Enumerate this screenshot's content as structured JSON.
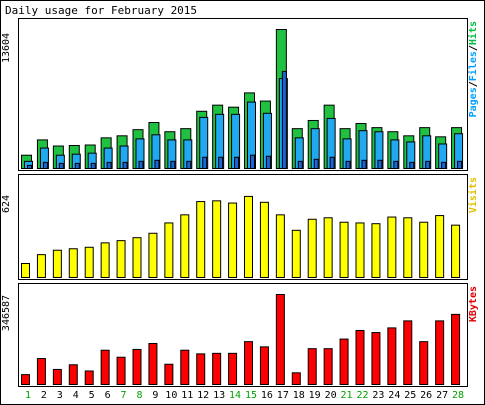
{
  "chart_data": {
    "type": "bar",
    "title": "Daily usage for February 2015",
    "categories": [
      "1",
      "2",
      "3",
      "4",
      "5",
      "6",
      "7",
      "8",
      "9",
      "10",
      "11",
      "12",
      "13",
      "14",
      "15",
      "16",
      "17",
      "18",
      "19",
      "20",
      "21",
      "22",
      "23",
      "24",
      "25",
      "26",
      "27",
      "28"
    ],
    "weekend_days": [
      "1",
      "7",
      "8",
      "14",
      "15",
      "21",
      "22",
      "28"
    ],
    "panels": [
      {
        "id": "hits",
        "ymax_label": "13604",
        "ylim": [
          0,
          13604
        ],
        "legend": [
          {
            "text": "Pages",
            "color": "#00a0ff"
          },
          {
            "text": "/",
            "color": "#000000"
          },
          {
            "text": "Files",
            "color": "#00a0ff"
          },
          {
            "text": "/",
            "color": "#000000"
          },
          {
            "text": "Hits",
            "color": "#00c040"
          }
        ],
        "series": [
          {
            "name": "Hits",
            "color": "#20c040",
            "values": [
              1300,
              2800,
              2200,
              2250,
              2300,
              3000,
              3200,
              3800,
              4500,
              3600,
              3900,
              5600,
              6200,
              6000,
              7400,
              6600,
              13604,
              3900,
              4700,
              6200,
              3900,
              4400,
              4000,
              3600,
              3200,
              4000,
              3100,
              4000
            ]
          },
          {
            "name": "Files",
            "color": "#20a8f0",
            "values": [
              700,
              2000,
              1300,
              1400,
              1500,
              2000,
              2200,
              2900,
              3300,
              2800,
              2800,
              5000,
              5300,
              5300,
              6500,
              5400,
              8800,
              3000,
              3900,
              4900,
              2900,
              3700,
              3600,
              2800,
              2600,
              3200,
              2400,
              3400
            ]
          },
          {
            "name": "Pages",
            "color": "#1a66d8",
            "values": [
              300,
              600,
              500,
              500,
              500,
              600,
              600,
              700,
              800,
              700,
              700,
              1100,
              1100,
              1100,
              1300,
              1200,
              9500,
              700,
              900,
              1100,
              700,
              800,
              800,
              700,
              600,
              700,
              600,
              700
            ]
          }
        ]
      },
      {
        "id": "visits",
        "ymax_label": "624",
        "ylim": [
          0,
          624
        ],
        "legend": [
          {
            "text": "Visits",
            "color": "#e0c000"
          }
        ],
        "series": [
          {
            "name": "Visits",
            "color": "#ffff00",
            "values": [
              95,
              155,
              185,
              195,
              205,
              235,
              250,
              270,
              300,
              370,
              425,
              515,
              520,
              505,
              550,
              510,
              425,
              320,
              395,
              405,
              375,
              370,
              365,
              410,
              405,
              375,
              420,
              355
            ]
          }
        ]
      },
      {
        "id": "kbytes",
        "ymax_label": "346587",
        "ylim": [
          0,
          346587
        ],
        "legend": [
          {
            "text": "KBytes",
            "color": "#e00000"
          }
        ],
        "series": [
          {
            "name": "KBytes",
            "color": "#ff0000",
            "values": [
              38000,
              100000,
              58000,
              76000,
              52000,
              132000,
              105000,
              135000,
              158000,
              78000,
              132000,
              118000,
              120000,
              120000,
              165000,
              145000,
              346587,
              45000,
              138000,
              138000,
              175000,
              208000,
              200000,
              218000,
              245000,
              165000,
              245000,
              270000
            ]
          }
        ]
      }
    ]
  }
}
